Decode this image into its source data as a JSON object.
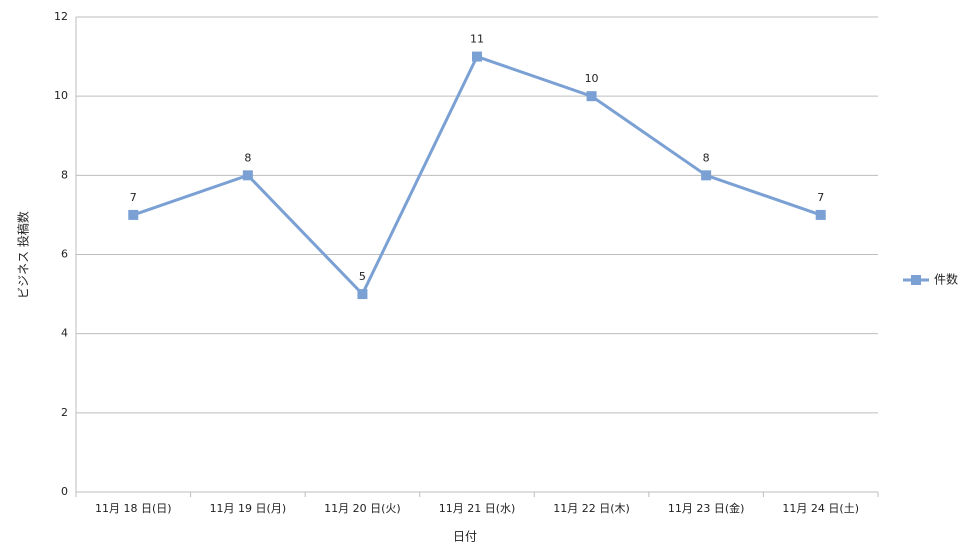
{
  "chart_data": {
    "type": "line",
    "categories": [
      "11月 18 日(日)",
      "11月 19 日(月)",
      "11月 20 日(火)",
      "11月 21 日(水)",
      "11月 22 日(木)",
      "11月 23 日(金)",
      "11月 24 日(土)"
    ],
    "series": [
      {
        "name": "件数",
        "color": "#7aa0d4",
        "values": [
          7,
          8,
          5,
          11,
          10,
          8,
          7
        ]
      }
    ],
    "xlabel": "日付",
    "ylabel": "ビジネス 投稿数",
    "ylim": [
      0,
      12
    ],
    "yticks": [
      0,
      2,
      4,
      6,
      8,
      10,
      12
    ],
    "grid": true,
    "legend": "right",
    "data_labels": true
  }
}
